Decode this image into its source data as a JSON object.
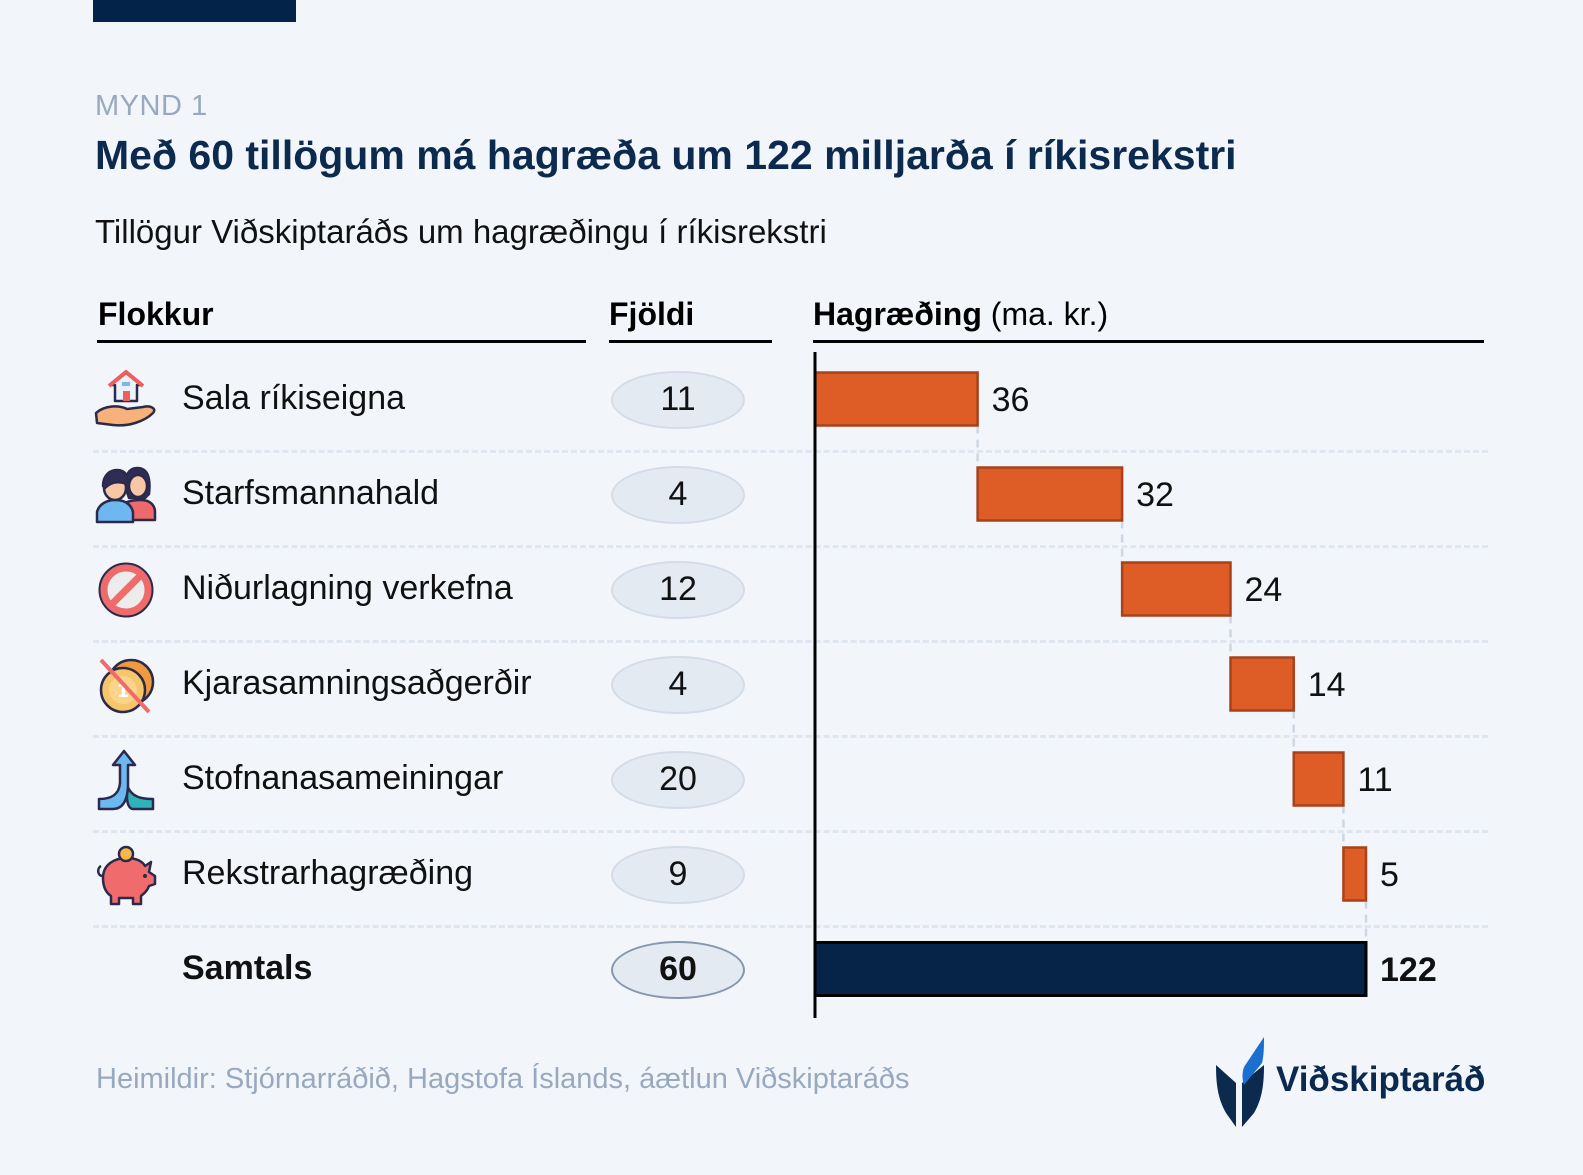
{
  "header": {
    "figure_label": "MYND 1",
    "title": "Með 60 tillögum má hagræða um 122 milljarða í ríkisrekstri",
    "subtitle": "Tillögur Viðskiptaráðs um hagræðingu í ríkisrekstri"
  },
  "columns": {
    "category": "Flokkur",
    "count": "Fjöldi",
    "savings": "Hagræðing",
    "savings_unit": "(ma. kr.)"
  },
  "rows": [
    {
      "label": "Sala ríkiseigna",
      "count": "11",
      "icon": "house-in-hand-icon"
    },
    {
      "label": "Starfsmannahald",
      "count": "4",
      "icon": "people-icon"
    },
    {
      "label": "Niðurlagning verkefna",
      "count": "12",
      "icon": "prohibited-icon"
    },
    {
      "label": "Kjarasamningsaðgerðir",
      "count": "4",
      "icon": "crossed-coin-icon"
    },
    {
      "label": "Stofnanasameiningar",
      "count": "20",
      "icon": "merge-arrow-icon"
    },
    {
      "label": "Rekstrarhagræðing",
      "count": "9",
      "icon": "piggy-bank-icon"
    }
  ],
  "total": {
    "label": "Samtals",
    "count": "60"
  },
  "colors": {
    "bar": "#de5d27",
    "bar_border": "#a8421c",
    "total_bar": "#062447",
    "title": "#0b2a4e",
    "muted": "#98a9bf",
    "background": "#f2f6fb"
  },
  "chart_data": {
    "type": "bar",
    "subtype": "waterfall-horizontal",
    "title": "Hagræðing (ma. kr.)",
    "categories": [
      "Sala ríkiseigna",
      "Starfsmannahald",
      "Niðurlagning verkefna",
      "Kjarasamningsaðgerðir",
      "Stofnanasameiningar",
      "Rekstrarhagræðing",
      "Samtals"
    ],
    "values": [
      36,
      32,
      24,
      14,
      11,
      5,
      122
    ],
    "labels": [
      "36",
      "32",
      "24",
      "14",
      "11",
      "5",
      "122"
    ],
    "total_index": 6,
    "xlim": [
      0,
      122
    ],
    "grid": false,
    "xlabel": "",
    "ylabel": ""
  },
  "footer": {
    "source": "Heimildir: Stjórnarráðið, Hagstofa Íslands, áætlun Viðskiptaráðs",
    "logo_text": "Viðskiptaráð"
  }
}
